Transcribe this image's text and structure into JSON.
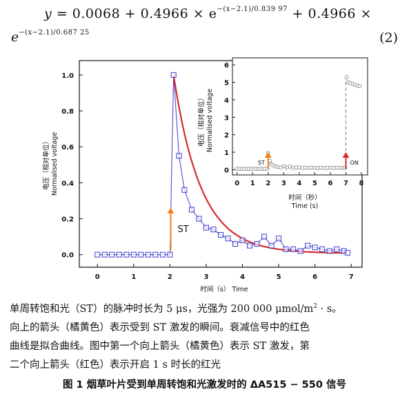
{
  "equation": {
    "line1_lhs": "y",
    "line1_mid": "= 0.0068 + 0.4966 × e",
    "line1_exp": "−(x−2.1)/0.839 97",
    "line1_tail": "+ 0.4966 ×",
    "line2_base": "e",
    "line2_exp": "−(x−2.1)/0.687 25",
    "number": "(2)"
  },
  "chart_data": [
    {
      "type": "scatter",
      "xlabel": "时间（s） Time",
      "ylabel_cn": "电压（相对单位）",
      "ylabel_en": "Normalised voltage",
      "xlim": [
        -0.5,
        7.3
      ],
      "ylim": [
        -0.07,
        1.08
      ],
      "xticks": [
        0,
        1,
        2,
        3,
        4,
        5,
        6,
        7
      ],
      "yticks": [
        0.0,
        0.2,
        0.4,
        0.6,
        0.8,
        1.0
      ],
      "annotation": "ST",
      "arrow_color": "#f07f1a",
      "series": [
        {
          "style": "open squares + line",
          "color": "#3b3bd0",
          "x": [
            0.0,
            0.2,
            0.4,
            0.6,
            0.8,
            1.0,
            1.2,
            1.4,
            1.6,
            1.8,
            2.0,
            2.1,
            2.25,
            2.4,
            2.6,
            2.8,
            3.0,
            3.2,
            3.4,
            3.6,
            3.8,
            4.0,
            4.2,
            4.4,
            4.6,
            4.8,
            5.0,
            5.2,
            5.4,
            5.6,
            5.8,
            6.0,
            6.2,
            6.4,
            6.6,
            6.8,
            6.9
          ],
          "y": [
            0.0,
            0.0,
            0.0,
            0.0,
            0.0,
            0.0,
            0.0,
            0.0,
            0.0,
            0.0,
            0.0,
            1.0,
            0.55,
            0.36,
            0.25,
            0.2,
            0.15,
            0.14,
            0.11,
            0.09,
            0.06,
            0.08,
            0.05,
            0.06,
            0.1,
            0.05,
            0.09,
            0.03,
            0.03,
            0.02,
            0.05,
            0.04,
            0.03,
            0.02,
            0.03,
            0.02,
            0.01
          ]
        },
        {
          "style": "fit curve",
          "color": "#d62a2a",
          "fit": {
            "x0": 2.1,
            "c": 0.0068,
            "a1": 0.4966,
            "t1": 0.83997,
            "a2": 0.4966,
            "t2": 0.68725,
            "xmax": 6.9
          }
        }
      ]
    },
    {
      "type": "scatter",
      "xlabel_cn": "时间（秒）",
      "xlabel_en": "Time (s)",
      "ylabel_cn": "电压（相对单位）",
      "ylabel_en": "Normalised voltage",
      "xlim": [
        -0.3,
        8.4
      ],
      "ylim": [
        -0.3,
        6.4
      ],
      "xticks": [
        0,
        1,
        2,
        3,
        4,
        5,
        6,
        7,
        8
      ],
      "yticks": [
        0,
        1,
        2,
        3,
        4,
        5,
        6
      ],
      "annotations": [
        {
          "label": "ST",
          "x": 2.0,
          "color": "#f07f1a"
        },
        {
          "label": "ON",
          "x": 7.0,
          "color": "#d62a2a"
        }
      ],
      "series": [
        {
          "style": "open circles",
          "color": "#888888",
          "x": [
            0.0,
            0.15,
            0.3,
            0.45,
            0.6,
            0.75,
            0.9,
            1.05,
            1.2,
            1.35,
            1.5,
            1.65,
            1.8,
            1.95,
            2.0,
            2.1,
            2.2,
            2.35,
            2.5,
            2.65,
            2.8,
            3.0,
            3.2,
            3.4,
            3.6,
            3.8,
            4.0,
            4.2,
            4.4,
            4.6,
            4.8,
            5.0,
            5.2,
            5.4,
            5.6,
            5.8,
            6.0,
            6.2,
            6.4,
            6.6,
            6.8,
            6.95,
            7.05,
            7.15,
            7.3,
            7.45,
            7.6,
            7.75,
            7.9
          ],
          "y": [
            0.05,
            0.05,
            0.05,
            0.05,
            0.05,
            0.05,
            0.05,
            0.05,
            0.05,
            0.05,
            0.05,
            0.05,
            0.05,
            0.05,
            0.95,
            0.5,
            0.3,
            0.25,
            0.18,
            0.15,
            0.12,
            0.2,
            0.12,
            0.18,
            0.1,
            0.14,
            0.12,
            0.1,
            0.12,
            0.1,
            0.12,
            0.1,
            0.1,
            0.12,
            0.1,
            0.1,
            0.12,
            0.1,
            0.12,
            0.1,
            0.1,
            0.1,
            5.3,
            5.0,
            4.95,
            4.9,
            4.85,
            4.8,
            4.8
          ]
        }
      ]
    }
  ],
  "caption": {
    "line1_a": "单周转饱和光（ST）的脉冲时长为 5 μs，光强为 200 000 μmol/m",
    "line1_sup": "2",
    "line1_b": " · s。",
    "line2": "向上的箭头（橘黄色）表示受到 ST 激发的瞬间。衰减信号中的红色",
    "line3": "曲线是拟合曲线。图中第一个向上箭头（橘黄色）表示 ST 激发，第",
    "line4": "二个向上箭头（红色）表示开启 1 s 时长的红光"
  },
  "figure_title": "图 1  烟草叶片受到单周转饱和光激发时的 ΔA515 − 550 信号"
}
